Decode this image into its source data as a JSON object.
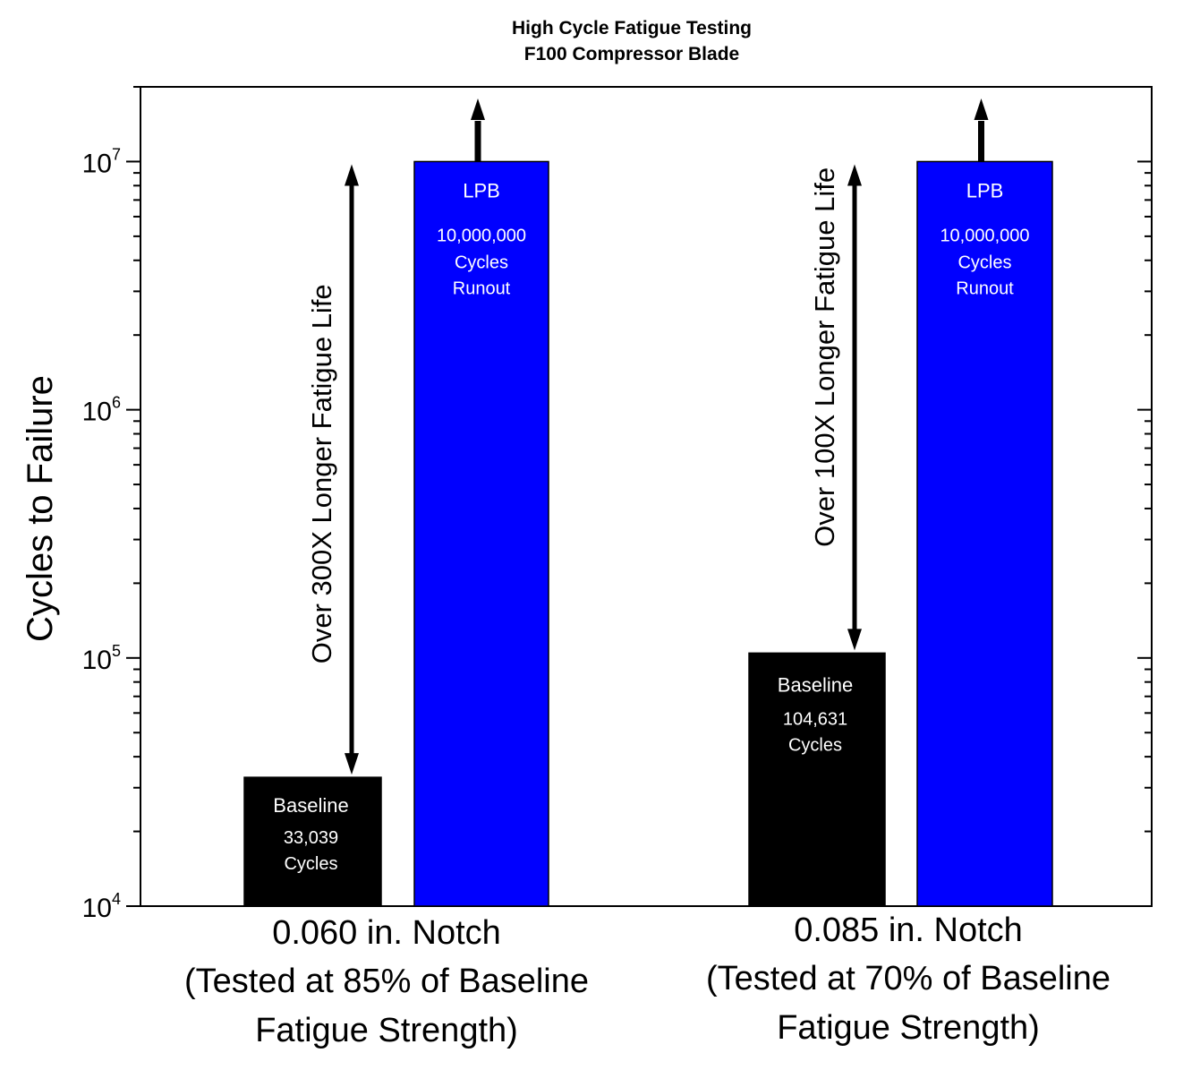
{
  "chart_data": {
    "type": "bar",
    "title": [
      "High Cycle Fatigue Testing",
      "F100 Compressor Blade"
    ],
    "ylabel": "Cycles to Failure",
    "yscale": "log",
    "ylim": [
      10000,
      20000000
    ],
    "yticks": [
      {
        "base": "10",
        "exp": "4",
        "value": 10000
      },
      {
        "base": "10",
        "exp": "5",
        "value": 100000
      },
      {
        "base": "10",
        "exp": "6",
        "value": 1000000
      },
      {
        "base": "10",
        "exp": "7",
        "value": 10000000
      }
    ],
    "groups": [
      {
        "category_lines": [
          "0.060 in. Notch",
          "(Tested at 85% of Baseline",
          "Fatigue Strength)"
        ],
        "bars": [
          {
            "name": "Baseline",
            "value": 33039,
            "color": "#000000",
            "label_lines": [
              "Baseline",
              "33,039",
              "Cycles"
            ]
          },
          {
            "name": "LPB",
            "value": 10000000,
            "color": "#0000ff",
            "label_lines": [
              "LPB",
              "10,000,000",
              "Cycles",
              "Runout"
            ],
            "runout_arrow": true
          }
        ],
        "annotation": "Over 300X Longer Fatigue Life"
      },
      {
        "category_lines": [
          "0.085 in. Notch",
          "(Tested at 70% of Baseline",
          "Fatigue Strength)"
        ],
        "bars": [
          {
            "name": "Baseline",
            "value": 104631,
            "color": "#000000",
            "label_lines": [
              "Baseline",
              "104,631",
              "Cycles"
            ]
          },
          {
            "name": "LPB",
            "value": 10000000,
            "color": "#0000ff",
            "label_lines": [
              "LPB",
              "10,000,000",
              "Cycles",
              "Runout"
            ],
            "runout_arrow": true
          }
        ],
        "annotation": "Over 100X Longer Fatigue Life"
      }
    ]
  }
}
